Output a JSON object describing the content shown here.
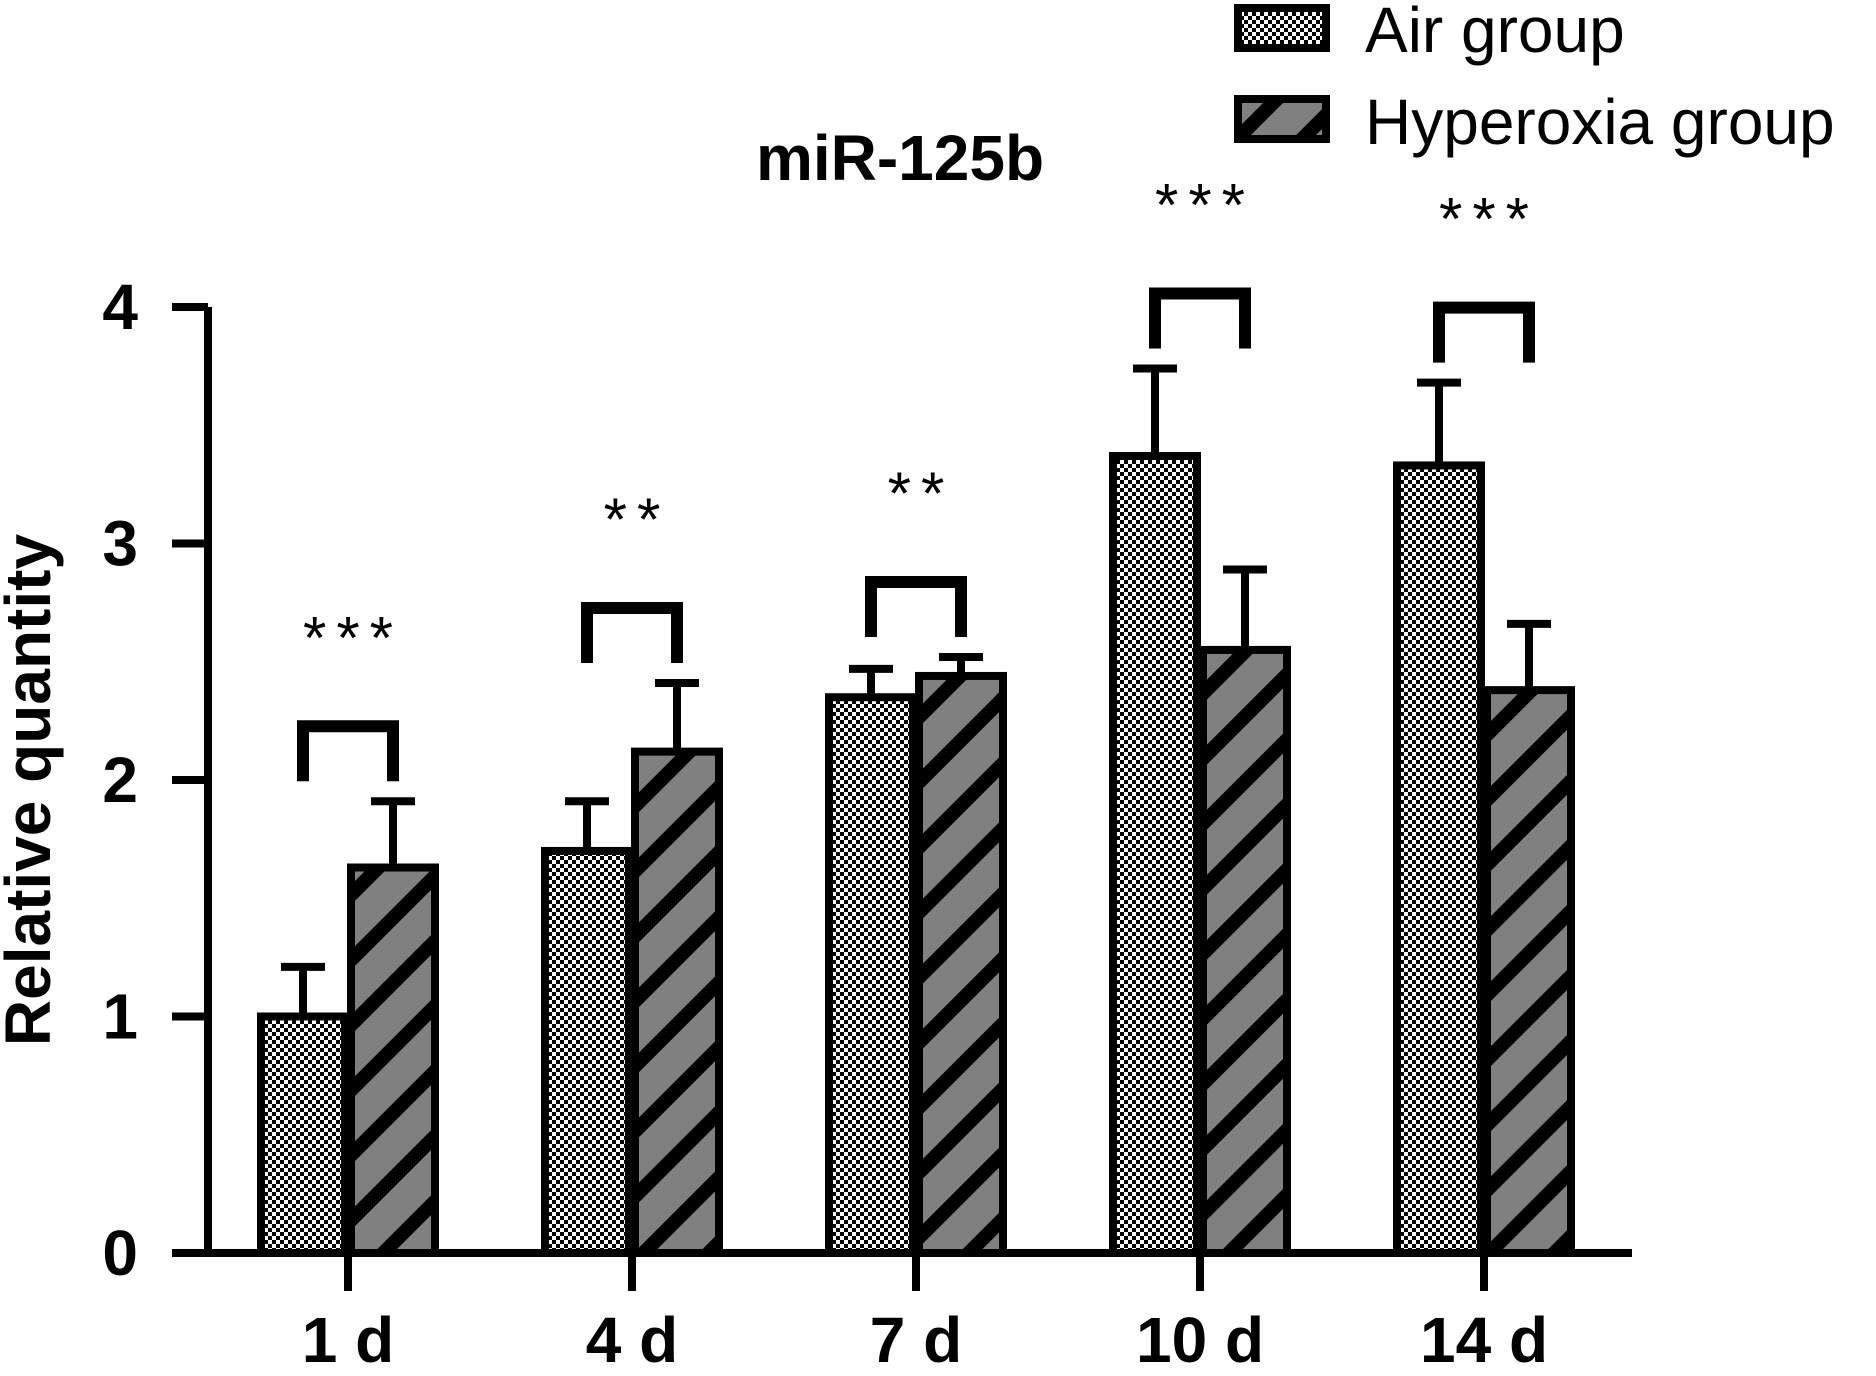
{
  "chart_data": {
    "type": "bar",
    "title": "miR-125b",
    "ylabel": "Relative quantity",
    "xlabel": "",
    "ylim": [
      0,
      4
    ],
    "yticks": [
      "0",
      "1",
      "2",
      "3",
      "4"
    ],
    "categories": [
      "1 d",
      "4 d",
      "7 d",
      "10 d",
      "14 d"
    ],
    "series": [
      {
        "name": "Air group",
        "values": [
          1.0,
          1.7,
          2.35,
          3.37,
          3.33
        ],
        "errors": [
          0.21,
          0.21,
          0.12,
          0.37,
          0.35
        ],
        "pattern": "checkerboard",
        "color": "#ffffff"
      },
      {
        "name": "Hyperoxia group",
        "values": [
          1.63,
          2.12,
          2.44,
          2.55,
          2.38
        ],
        "errors": [
          0.28,
          0.29,
          0.08,
          0.34,
          0.28
        ],
        "pattern": "diagonal-stripes",
        "color": "#808080"
      }
    ],
    "significance": [
      "***",
      "**",
      "**",
      "***",
      "***"
    ],
    "legend_position": "top-right",
    "grid": false
  }
}
